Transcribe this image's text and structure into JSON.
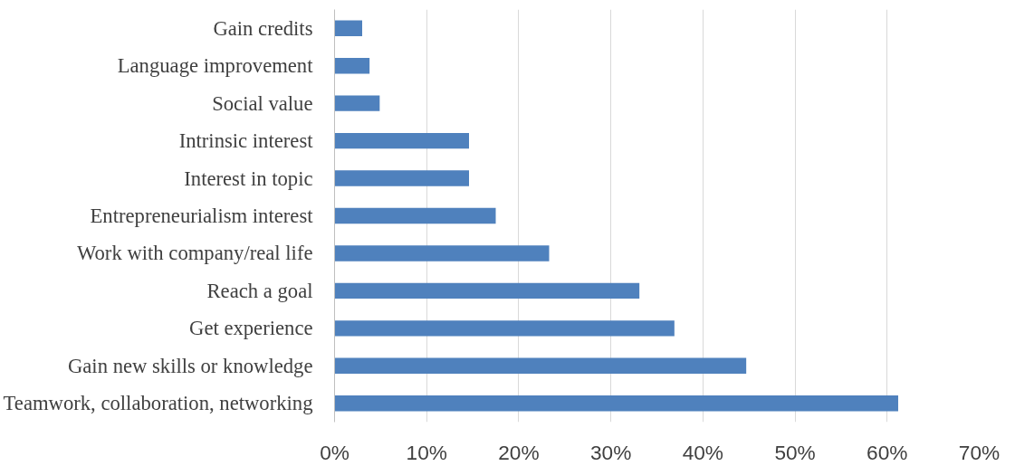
{
  "chart_data": {
    "type": "bar",
    "orientation": "horizontal",
    "categories": [
      "Gain credits",
      "Language improvement",
      "Social value",
      "Intrinsic interest",
      "Interest in topic",
      "Entrepreneurialism interest",
      "Work with company/real life",
      "Reach a goal",
      "Get experience",
      "Gain new skills or knowledge",
      "Teamwork, collaboration, networking"
    ],
    "values": [
      3.0,
      3.8,
      4.9,
      14.6,
      14.6,
      17.5,
      23.3,
      33.1,
      36.9,
      44.7,
      61.2
    ],
    "color": "#4f81bd",
    "xlim": [
      0,
      70
    ],
    "xticks": [
      {
        "value": 0,
        "label": "0%"
      },
      {
        "value": 10,
        "label": "10%"
      },
      {
        "value": 20,
        "label": "20%"
      },
      {
        "value": 30,
        "label": "30%"
      },
      {
        "value": 40,
        "label": "40%"
      },
      {
        "value": 50,
        "label": "50%"
      },
      {
        "value": 60,
        "label": "60%"
      },
      {
        "value": 70,
        "label": "70%"
      }
    ],
    "grid": "x"
  }
}
